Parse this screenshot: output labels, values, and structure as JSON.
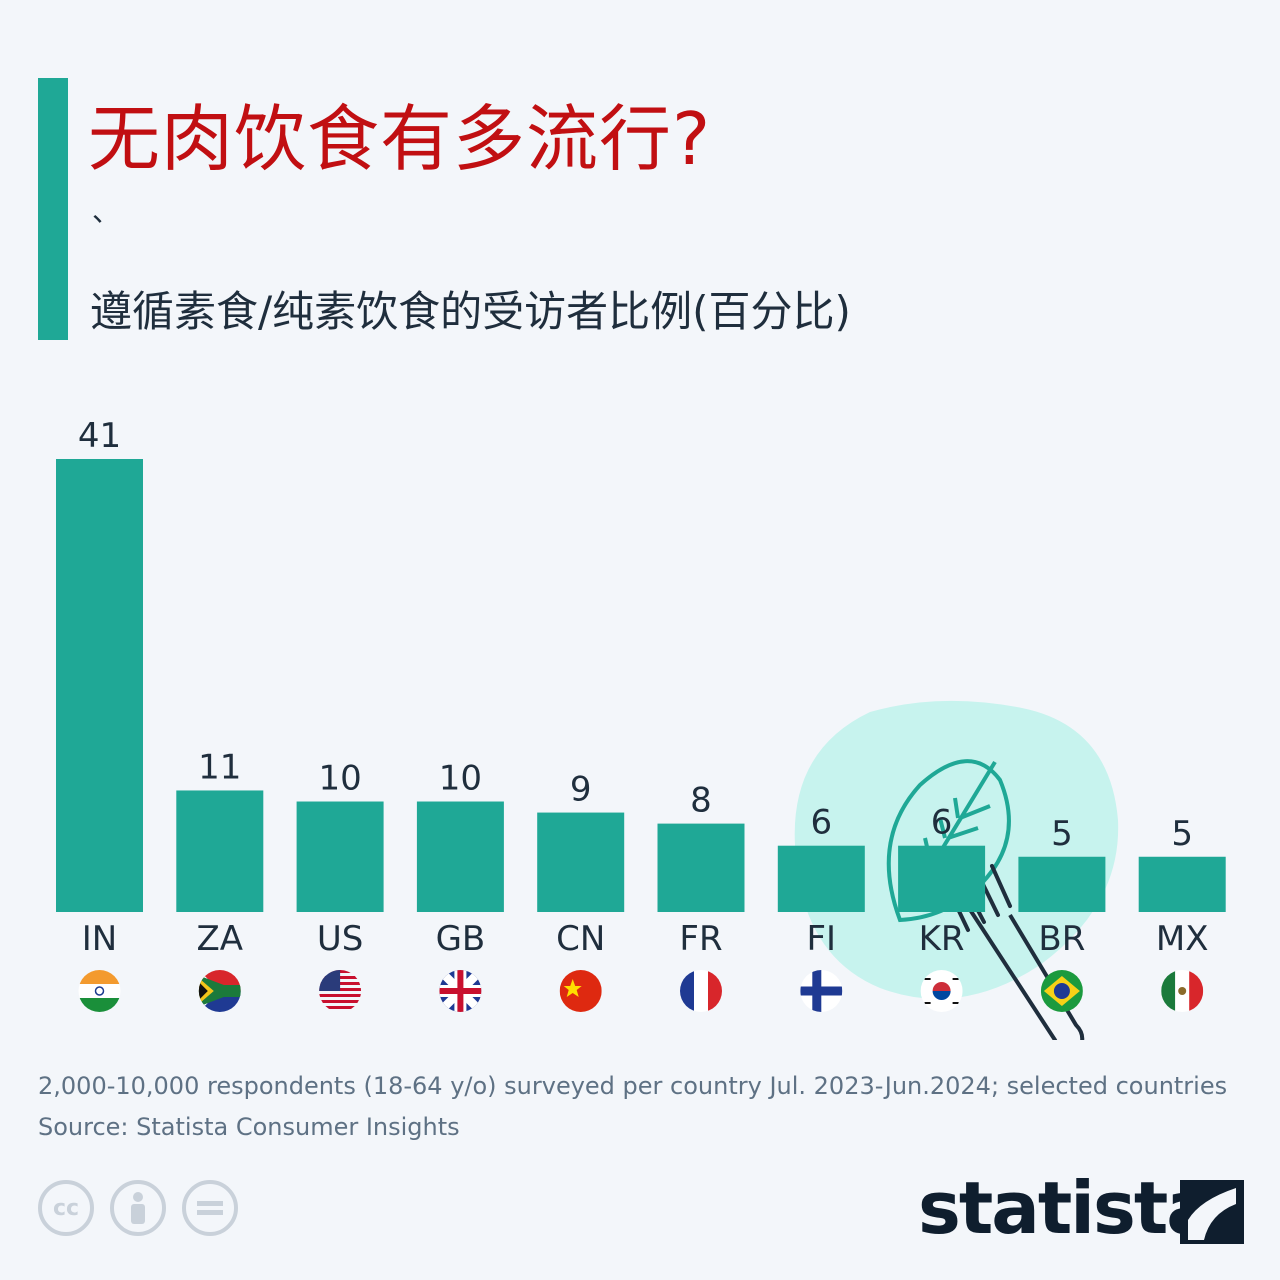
{
  "header": {
    "title": "无肉饮食有多流行?",
    "mark": "、",
    "subtitle": "遵循素食/纯素饮食的受访者比例(百分比)"
  },
  "chart_data": {
    "type": "bar",
    "categories": [
      "IN",
      "ZA",
      "US",
      "GB",
      "CN",
      "FR",
      "FI",
      "KR",
      "BR",
      "MX"
    ],
    "values": [
      41,
      11,
      10,
      10,
      9,
      8,
      6,
      6,
      5,
      5
    ],
    "title": "无肉饮食有多流行?",
    "subtitle": "遵循素食/纯素饮食的受访者比例(百分比)",
    "ylim": [
      0,
      41
    ],
    "bar_color": "#1fa896",
    "grid": false
  },
  "flags": [
    "india-flag-icon",
    "south-africa-flag-icon",
    "usa-flag-icon",
    "uk-flag-icon",
    "china-flag-icon",
    "france-flag-icon",
    "finland-flag-icon",
    "korea-flag-icon",
    "brazil-flag-icon",
    "mexico-flag-icon"
  ],
  "footer": {
    "note": "2,000-10,000 respondents (18-64 y/o) surveyed per country Jul. 2023-Jun.2024; selected countries",
    "source": "Source: Statista Consumer Insights",
    "brand": "statista"
  },
  "colors": {
    "accent": "#1fa896",
    "title": "#c10f12",
    "text": "#1f2e3d"
  }
}
